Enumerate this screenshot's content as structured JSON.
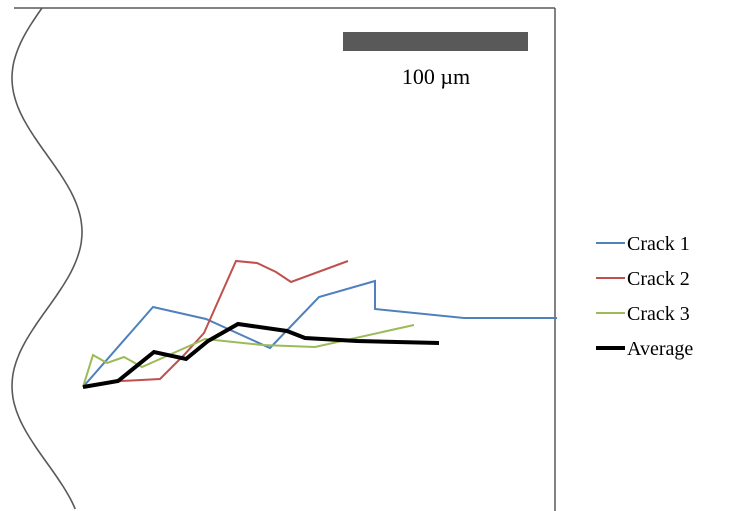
{
  "chart_data": {
    "type": "line",
    "title": "",
    "xlabel": "",
    "ylabel": "",
    "grid": false,
    "legend_position": "right",
    "scale_bar": {
      "label": "100 µm",
      "color": "#595959"
    },
    "boundary": {
      "color": "#595959"
    },
    "series": [
      {
        "name": "Crack 1",
        "color": "#4f81bd",
        "points": [
          [
            0,
            0
          ],
          [
            70,
            -80
          ],
          [
            123,
            -68
          ],
          [
            187,
            -39
          ],
          [
            236,
            -90
          ],
          [
            292,
            -106
          ],
          [
            292,
            -78
          ],
          [
            381,
            -69
          ],
          [
            474,
            -69
          ]
        ]
      },
      {
        "name": "Crack 2",
        "color": "#c0504d",
        "points": [
          [
            0,
            0
          ],
          [
            38,
            -6
          ],
          [
            77,
            -8
          ],
          [
            101,
            -32
          ],
          [
            121,
            -54
          ],
          [
            153,
            -126
          ],
          [
            174,
            -124
          ],
          [
            193,
            -115
          ],
          [
            208,
            -105
          ],
          [
            265,
            -126
          ]
        ]
      },
      {
        "name": "Crack 3",
        "color": "#9bbb59",
        "points": [
          [
            0,
            0
          ],
          [
            10,
            -32
          ],
          [
            24,
            -24
          ],
          [
            41,
            -30
          ],
          [
            59,
            -20
          ],
          [
            122,
            -48
          ],
          [
            179,
            -42
          ],
          [
            232,
            -40
          ],
          [
            331,
            -62
          ]
        ]
      },
      {
        "name": "Average",
        "color": "#000000",
        "points": [
          [
            0,
            0
          ],
          [
            35,
            -6
          ],
          [
            71,
            -35
          ],
          [
            103,
            -28
          ],
          [
            125,
            -46
          ],
          [
            155,
            -63
          ],
          [
            204,
            -56
          ],
          [
            222,
            -49
          ],
          [
            274,
            -46
          ],
          [
            356,
            -44
          ]
        ]
      }
    ]
  }
}
